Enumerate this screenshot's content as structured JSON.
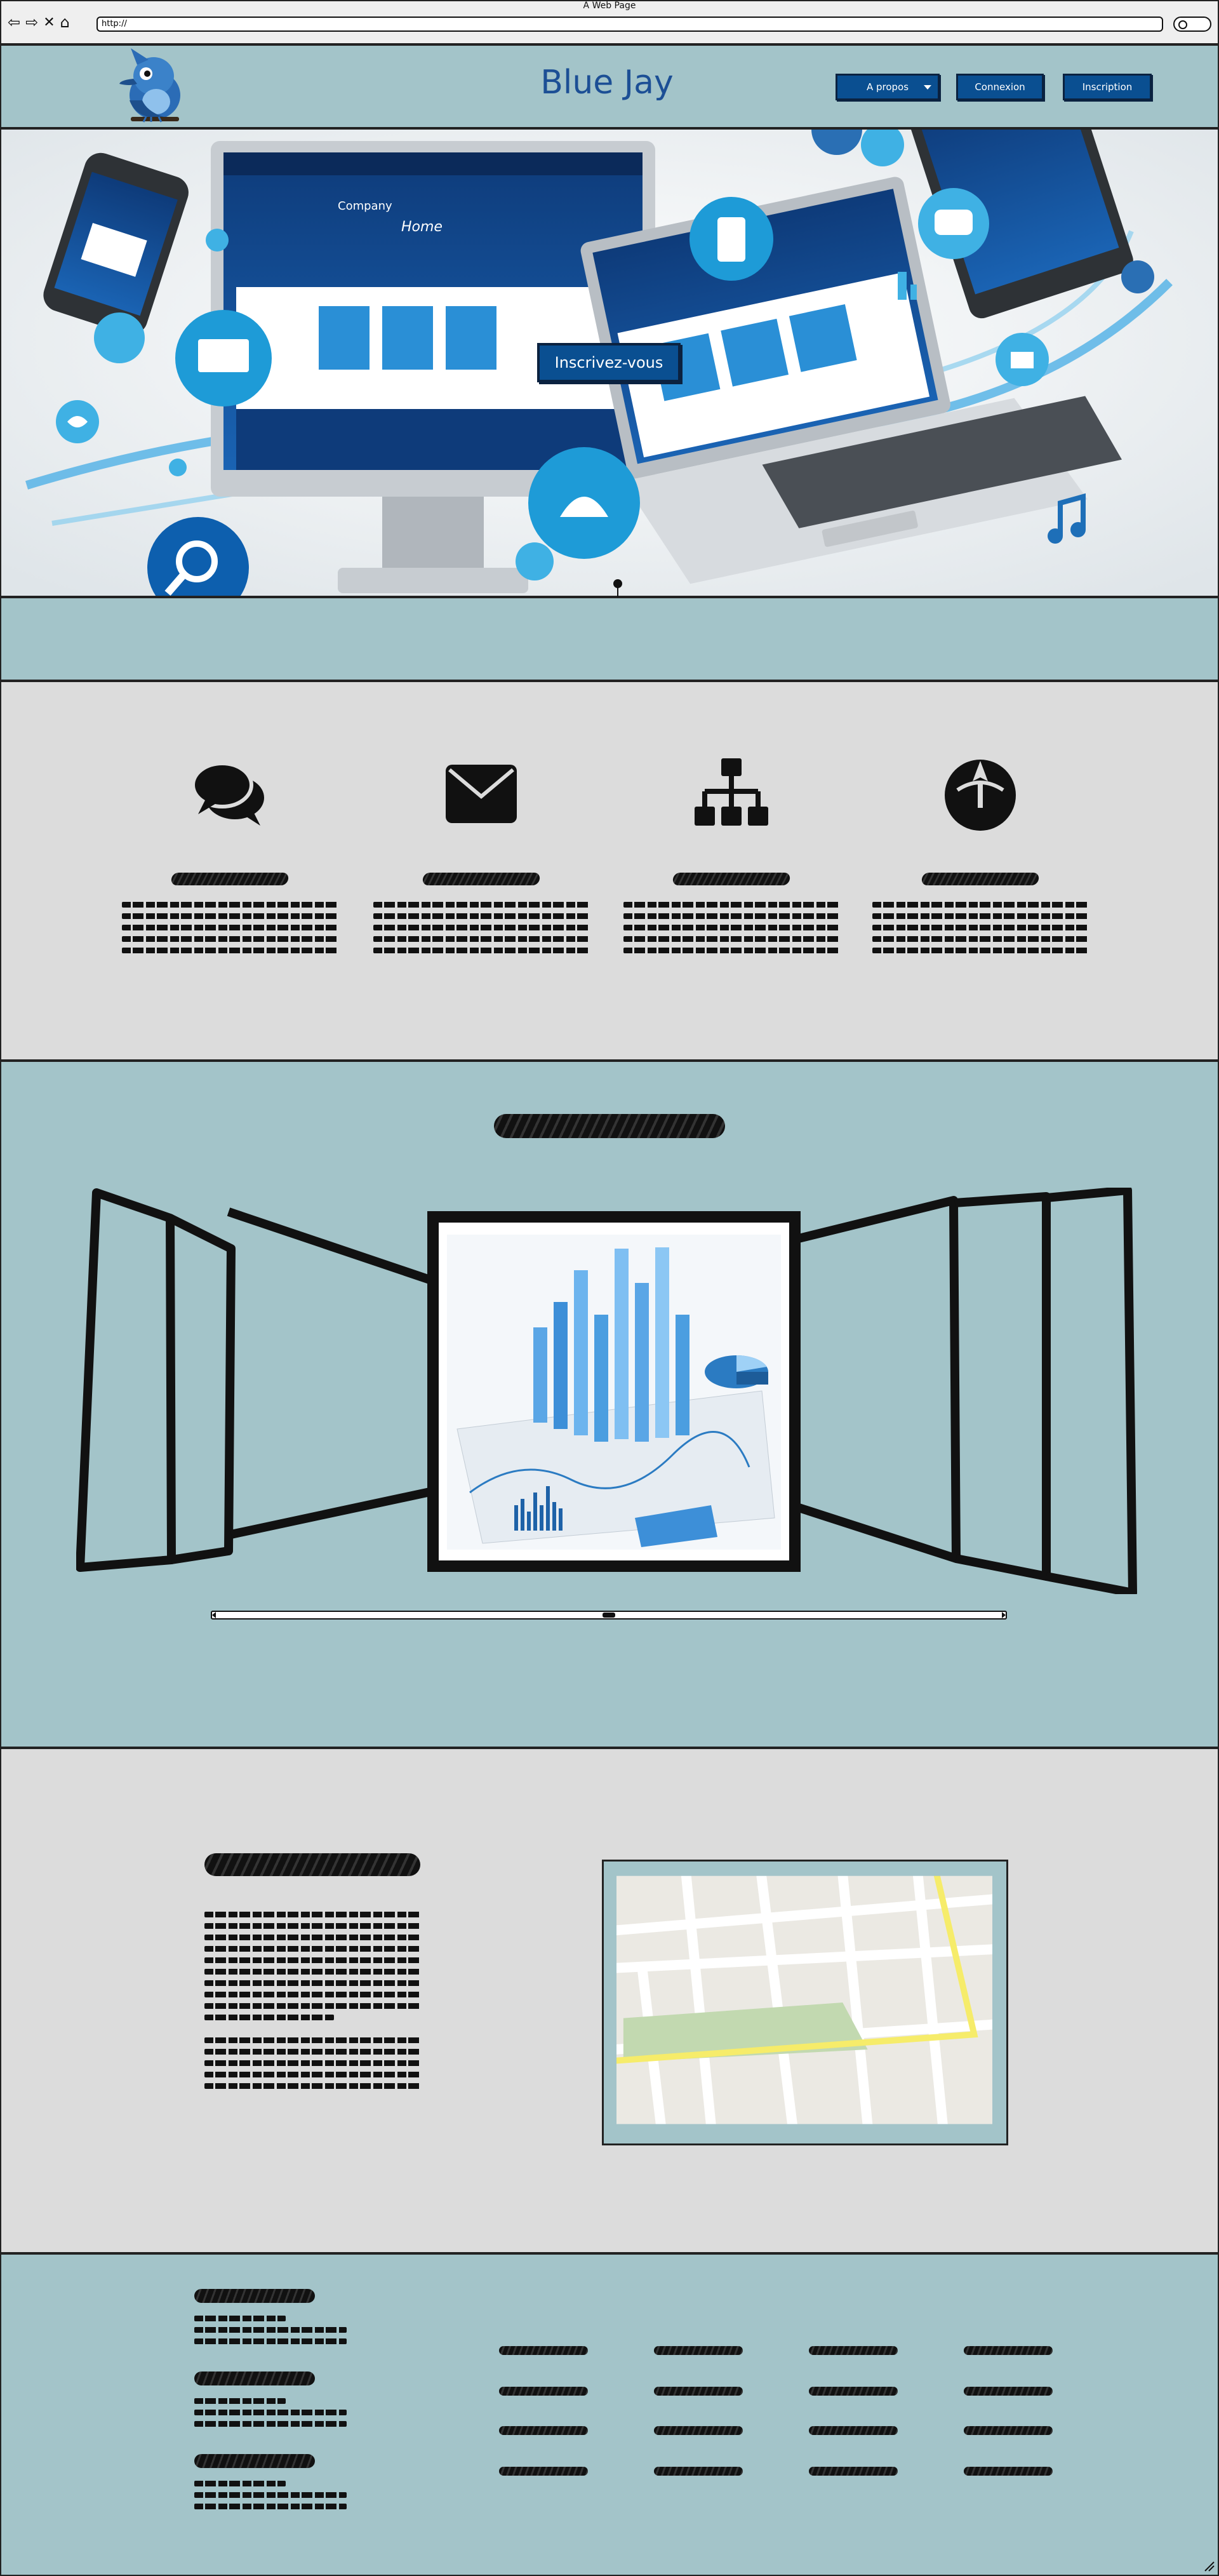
{
  "browser": {
    "window_title": "A Web Page",
    "url": "http://"
  },
  "header": {
    "brand": "Blue Jay",
    "nav": [
      {
        "label": "A propos",
        "has_dropdown": true
      },
      {
        "label": "Connexion"
      },
      {
        "label": "Inscription"
      }
    ]
  },
  "hero": {
    "cta_label": "Inscrivez-vous",
    "mockup_company": "Company",
    "mockup_home": "Home"
  },
  "features": {
    "icons": [
      "chat-icon",
      "envelope-icon",
      "sitemap-icon",
      "rebel-alliance-icon"
    ],
    "items": [
      {
        "title": "~~~~",
        "lines": [
          "~~~~",
          "~~~~",
          "~~~~",
          "~~~~",
          "~~~~"
        ]
      },
      {
        "title": "~~~~",
        "lines": [
          "~~~~",
          "~~~~",
          "~~~~",
          "~~~~",
          "~~~~"
        ]
      },
      {
        "title": "~~~~",
        "lines": [
          "~~~~",
          "~~~~",
          "~~~~",
          "~~~~",
          "~~~~"
        ]
      },
      {
        "title": "~~~~",
        "lines": [
          "~~~~",
          "~~~~",
          "~~~~",
          "~~~~",
          "~~~~"
        ]
      }
    ]
  },
  "gallery": {
    "title": "~~~~",
    "slider_position": 0.5
  },
  "about": {
    "title": "~~~~",
    "paragraphs": [
      [
        "~~~~",
        "~~~~",
        "~~~~",
        "~~~~",
        "~~~~",
        "~~~~",
        "~~~~",
        "~~~~",
        "~~~~",
        "~~~~"
      ],
      [
        "~~~~",
        "~~~~",
        "~~~~",
        "~~~~",
        "~~~~"
      ]
    ]
  },
  "footer": {
    "blocks": [
      {
        "title": "~~~~",
        "lines": [
          "~~~~",
          "~~~~",
          "~~~~"
        ]
      },
      {
        "title": "~~~~",
        "lines": [
          "~~~~",
          "~~~~",
          "~~~~"
        ]
      },
      {
        "title": "~~~~",
        "lines": [
          "~~~~",
          "~~~~",
          "~~~~"
        ]
      }
    ],
    "link_columns": [
      [
        "~~~~",
        "~~~~",
        "~~~~",
        "~~~~"
      ],
      [
        "~~~~",
        "~~~~",
        "~~~~",
        "~~~~"
      ],
      [
        "~~~~",
        "~~~~",
        "~~~~",
        "~~~~"
      ],
      [
        "~~~~",
        "~~~~",
        "~~~~",
        "~~~~"
      ]
    ]
  },
  "colors": {
    "band": "#a3c4c9",
    "section_gray": "#dcdcdc",
    "button": "#0a4f91",
    "brand": "#1c4f95"
  }
}
